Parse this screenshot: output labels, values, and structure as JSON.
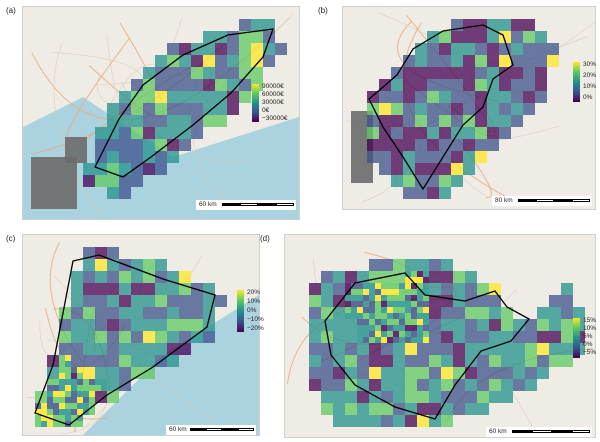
{
  "panels": [
    {
      "id": "a",
      "label": "(a)",
      "legend": {
        "ticks": [
          "90000€",
          "60000€",
          "30000€",
          "0€",
          "−30000€"
        ]
      },
      "scale": "60 km"
    },
    {
      "id": "b",
      "label": "(b)",
      "legend": {
        "ticks": [
          "30%",
          "20%",
          "10%",
          "0%"
        ]
      },
      "scale": "80 km"
    },
    {
      "id": "c",
      "label": "(c)",
      "legend": {
        "ticks": [
          "20%",
          "10%",
          "0%",
          "−10%",
          "−20%"
        ]
      },
      "scale": "60 km"
    },
    {
      "id": "d",
      "label": "(d)",
      "legend": {
        "ticks": [
          "15%",
          "10%",
          "5%",
          "0%",
          "−5%"
        ]
      },
      "scale": "60 km"
    }
  ],
  "colors": {
    "viridis": [
      "#440154",
      "#3b528b",
      "#21918c",
      "#5ec962",
      "#fde725"
    ],
    "grey_cell": "#6b6b6b",
    "sea": "#aad3df",
    "land": "#eeece4"
  }
}
